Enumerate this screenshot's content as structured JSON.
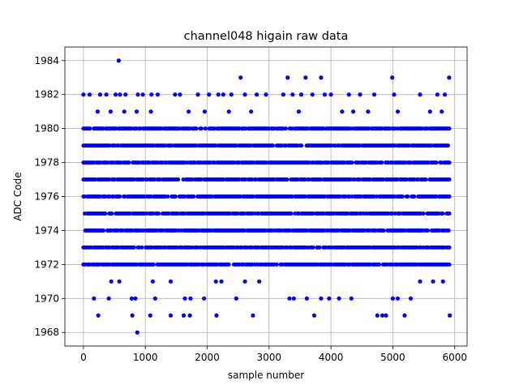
{
  "chart_data": {
    "type": "scatter",
    "title": "channel048 higain raw data",
    "xlabel": "sample number",
    "ylabel": "ADC Code",
    "xlim": [
      -300,
      6200
    ],
    "ylim": [
      1967.2,
      1984.8
    ],
    "xticks": [
      0,
      1000,
      2000,
      3000,
      4000,
      5000,
      6000
    ],
    "yticks": [
      1968,
      1970,
      1972,
      1974,
      1976,
      1978,
      1980,
      1982,
      1984
    ],
    "grid": true,
    "marker_color": "#0000ff",
    "n_samples": 5940,
    "series": [
      {
        "dense_levels": [
          {
            "y": 1972,
            "xmin": 0,
            "xmax": 5920
          },
          {
            "y": 1973,
            "xmin": 0,
            "xmax": 5920
          },
          {
            "y": 1974,
            "xmin": 30,
            "xmax": 5920
          },
          {
            "y": 1975,
            "xmin": 0,
            "xmax": 5920
          },
          {
            "y": 1976,
            "xmin": 0,
            "xmax": 5920
          },
          {
            "y": 1977,
            "xmin": 0,
            "xmax": 5920
          },
          {
            "y": 1978,
            "xmin": 0,
            "xmax": 5920
          },
          {
            "y": 1979,
            "xmin": 0,
            "xmax": 5920
          },
          {
            "y": 1980,
            "xmin": 0,
            "xmax": 5920
          }
        ],
        "sparse_points": [
          {
            "x": 570,
            "y": 1984
          },
          {
            "x": 2540,
            "y": 1983
          },
          {
            "x": 3300,
            "y": 1983
          },
          {
            "x": 3590,
            "y": 1983
          },
          {
            "x": 3840,
            "y": 1983
          },
          {
            "x": 4990,
            "y": 1983
          },
          {
            "x": 5910,
            "y": 1983
          },
          {
            "x": 0,
            "y": 1982
          },
          {
            "x": 100,
            "y": 1982
          },
          {
            "x": 270,
            "y": 1982
          },
          {
            "x": 370,
            "y": 1982
          },
          {
            "x": 520,
            "y": 1982
          },
          {
            "x": 590,
            "y": 1982
          },
          {
            "x": 680,
            "y": 1982
          },
          {
            "x": 880,
            "y": 1982
          },
          {
            "x": 960,
            "y": 1982
          },
          {
            "x": 1100,
            "y": 1982
          },
          {
            "x": 1200,
            "y": 1982
          },
          {
            "x": 1480,
            "y": 1982
          },
          {
            "x": 1560,
            "y": 1982
          },
          {
            "x": 1850,
            "y": 1982
          },
          {
            "x": 2030,
            "y": 1982
          },
          {
            "x": 2180,
            "y": 1982
          },
          {
            "x": 2260,
            "y": 1982
          },
          {
            "x": 2390,
            "y": 1982
          },
          {
            "x": 2610,
            "y": 1982
          },
          {
            "x": 2800,
            "y": 1982
          },
          {
            "x": 2950,
            "y": 1982
          },
          {
            "x": 3230,
            "y": 1982
          },
          {
            "x": 3380,
            "y": 1982
          },
          {
            "x": 3520,
            "y": 1982
          },
          {
            "x": 3700,
            "y": 1982
          },
          {
            "x": 3900,
            "y": 1982
          },
          {
            "x": 4000,
            "y": 1982
          },
          {
            "x": 4290,
            "y": 1982
          },
          {
            "x": 4470,
            "y": 1982
          },
          {
            "x": 4700,
            "y": 1982
          },
          {
            "x": 5020,
            "y": 1982
          },
          {
            "x": 5440,
            "y": 1982
          },
          {
            "x": 5720,
            "y": 1982
          },
          {
            "x": 5840,
            "y": 1982
          },
          {
            "x": 230,
            "y": 1981
          },
          {
            "x": 440,
            "y": 1981
          },
          {
            "x": 660,
            "y": 1981
          },
          {
            "x": 860,
            "y": 1981
          },
          {
            "x": 1090,
            "y": 1981
          },
          {
            "x": 1700,
            "y": 1981
          },
          {
            "x": 1960,
            "y": 1981
          },
          {
            "x": 2350,
            "y": 1981
          },
          {
            "x": 2710,
            "y": 1981
          },
          {
            "x": 3480,
            "y": 1981
          },
          {
            "x": 4180,
            "y": 1981
          },
          {
            "x": 4360,
            "y": 1981
          },
          {
            "x": 4600,
            "y": 1981
          },
          {
            "x": 5080,
            "y": 1981
          },
          {
            "x": 5600,
            "y": 1981
          },
          {
            "x": 5790,
            "y": 1981
          },
          {
            "x": 450,
            "y": 1971
          },
          {
            "x": 580,
            "y": 1971
          },
          {
            "x": 1120,
            "y": 1971
          },
          {
            "x": 1410,
            "y": 1971
          },
          {
            "x": 2140,
            "y": 1971
          },
          {
            "x": 2230,
            "y": 1971
          },
          {
            "x": 2610,
            "y": 1971
          },
          {
            "x": 2840,
            "y": 1971
          },
          {
            "x": 5440,
            "y": 1971
          },
          {
            "x": 5650,
            "y": 1971
          },
          {
            "x": 5810,
            "y": 1971
          },
          {
            "x": 170,
            "y": 1970
          },
          {
            "x": 410,
            "y": 1970
          },
          {
            "x": 780,
            "y": 1970
          },
          {
            "x": 840,
            "y": 1970
          },
          {
            "x": 1160,
            "y": 1970
          },
          {
            "x": 1640,
            "y": 1970
          },
          {
            "x": 1730,
            "y": 1970
          },
          {
            "x": 1950,
            "y": 1970
          },
          {
            "x": 2470,
            "y": 1970
          },
          {
            "x": 3330,
            "y": 1970
          },
          {
            "x": 3400,
            "y": 1970
          },
          {
            "x": 3610,
            "y": 1970
          },
          {
            "x": 3840,
            "y": 1970
          },
          {
            "x": 3970,
            "y": 1970
          },
          {
            "x": 4130,
            "y": 1970
          },
          {
            "x": 4330,
            "y": 1970
          },
          {
            "x": 5000,
            "y": 1970
          },
          {
            "x": 5080,
            "y": 1970
          },
          {
            "x": 5290,
            "y": 1970
          },
          {
            "x": 240,
            "y": 1969
          },
          {
            "x": 790,
            "y": 1969
          },
          {
            "x": 1080,
            "y": 1969
          },
          {
            "x": 1410,
            "y": 1969
          },
          {
            "x": 1620,
            "y": 1969
          },
          {
            "x": 1720,
            "y": 1969
          },
          {
            "x": 2150,
            "y": 1969
          },
          {
            "x": 2740,
            "y": 1969
          },
          {
            "x": 3730,
            "y": 1969
          },
          {
            "x": 4750,
            "y": 1969
          },
          {
            "x": 4830,
            "y": 1969
          },
          {
            "x": 4890,
            "y": 1969
          },
          {
            "x": 5190,
            "y": 1969
          },
          {
            "x": 5920,
            "y": 1969
          },
          {
            "x": 870,
            "y": 1968
          }
        ]
      }
    ]
  }
}
